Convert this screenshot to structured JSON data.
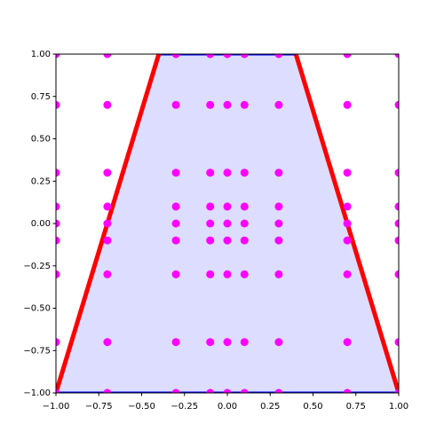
{
  "chart_data": {
    "type": "scatter",
    "x": [
      -1,
      -1,
      -1,
      -1,
      -1,
      -1,
      -1,
      -1,
      -1,
      -0.7,
      -0.7,
      -0.7,
      -0.7,
      -0.7,
      -0.7,
      -0.7,
      -0.7,
      -0.7,
      -0.3,
      -0.3,
      -0.3,
      -0.3,
      -0.3,
      -0.3,
      -0.3,
      -0.3,
      -0.3,
      -0.1,
      -0.1,
      -0.1,
      -0.1,
      -0.1,
      -0.1,
      -0.1,
      -0.1,
      -0.1,
      0,
      0,
      0,
      0,
      0,
      0,
      0,
      0,
      0,
      0.1,
      0.1,
      0.1,
      0.1,
      0.1,
      0.1,
      0.1,
      0.1,
      0.1,
      0.3,
      0.3,
      0.3,
      0.3,
      0.3,
      0.3,
      0.3,
      0.3,
      0.3,
      0.7,
      0.7,
      0.7,
      0.7,
      0.7,
      0.7,
      0.7,
      0.7,
      0.7,
      1,
      1,
      1,
      1,
      1,
      1,
      1,
      1,
      1
    ],
    "y": [
      -1,
      -0.7,
      -0.3,
      -0.1,
      0,
      0.1,
      0.3,
      0.7,
      1,
      -1,
      -0.7,
      -0.3,
      -0.1,
      0,
      0.1,
      0.3,
      0.7,
      1,
      -1,
      -0.7,
      -0.3,
      -0.1,
      0,
      0.1,
      0.3,
      0.7,
      1,
      -1,
      -0.7,
      -0.3,
      -0.1,
      0,
      0.1,
      0.3,
      0.7,
      1,
      -1,
      -0.7,
      -0.3,
      -0.1,
      0,
      0.1,
      0.3,
      0.7,
      1,
      -1,
      -0.7,
      -0.3,
      -0.1,
      0,
      0.1,
      0.3,
      0.7,
      1,
      -1,
      -0.7,
      -0.3,
      -0.1,
      0,
      0.1,
      0.3,
      0.7,
      1,
      -1,
      -0.7,
      -0.3,
      -0.1,
      0,
      0.1,
      0.3,
      0.7,
      1,
      -1,
      -0.7,
      -0.3,
      -0.1,
      0,
      0.1,
      0.3,
      0.7,
      1
    ],
    "color": "#ff00ff",
    "polygon": {
      "x": [
        -1,
        1,
        0.4,
        -0.4
      ],
      "y": [
        -1,
        -1,
        1,
        1
      ],
      "fill": "#ddddff",
      "edge_colors": [
        "blue",
        "red",
        "blue",
        "red"
      ]
    },
    "xlim": [
      -1,
      1
    ],
    "ylim": [
      -1,
      1
    ],
    "xticks": [
      {
        "value": -1,
        "label": "−1.00"
      },
      {
        "value": -0.75,
        "label": "−0.75"
      },
      {
        "value": -0.5,
        "label": "−0.50"
      },
      {
        "value": -0.25,
        "label": "−0.25"
      },
      {
        "value": 0,
        "label": "0.00"
      },
      {
        "value": 0.25,
        "label": "0.25"
      },
      {
        "value": 0.5,
        "label": "0.50"
      },
      {
        "value": 0.75,
        "label": "0.75"
      },
      {
        "value": 1,
        "label": "1.00"
      }
    ],
    "yticks": [
      {
        "value": -1,
        "label": "−1.00"
      },
      {
        "value": -0.75,
        "label": "−0.75"
      },
      {
        "value": -0.5,
        "label": "−0.50"
      },
      {
        "value": -0.25,
        "label": "−0.25"
      },
      {
        "value": 0,
        "label": "0.00"
      },
      {
        "value": 0.25,
        "label": "0.25"
      },
      {
        "value": 0.5,
        "label": "0.50"
      },
      {
        "value": 0.75,
        "label": "0.75"
      },
      {
        "value": 1,
        "label": "1.00"
      }
    ]
  }
}
